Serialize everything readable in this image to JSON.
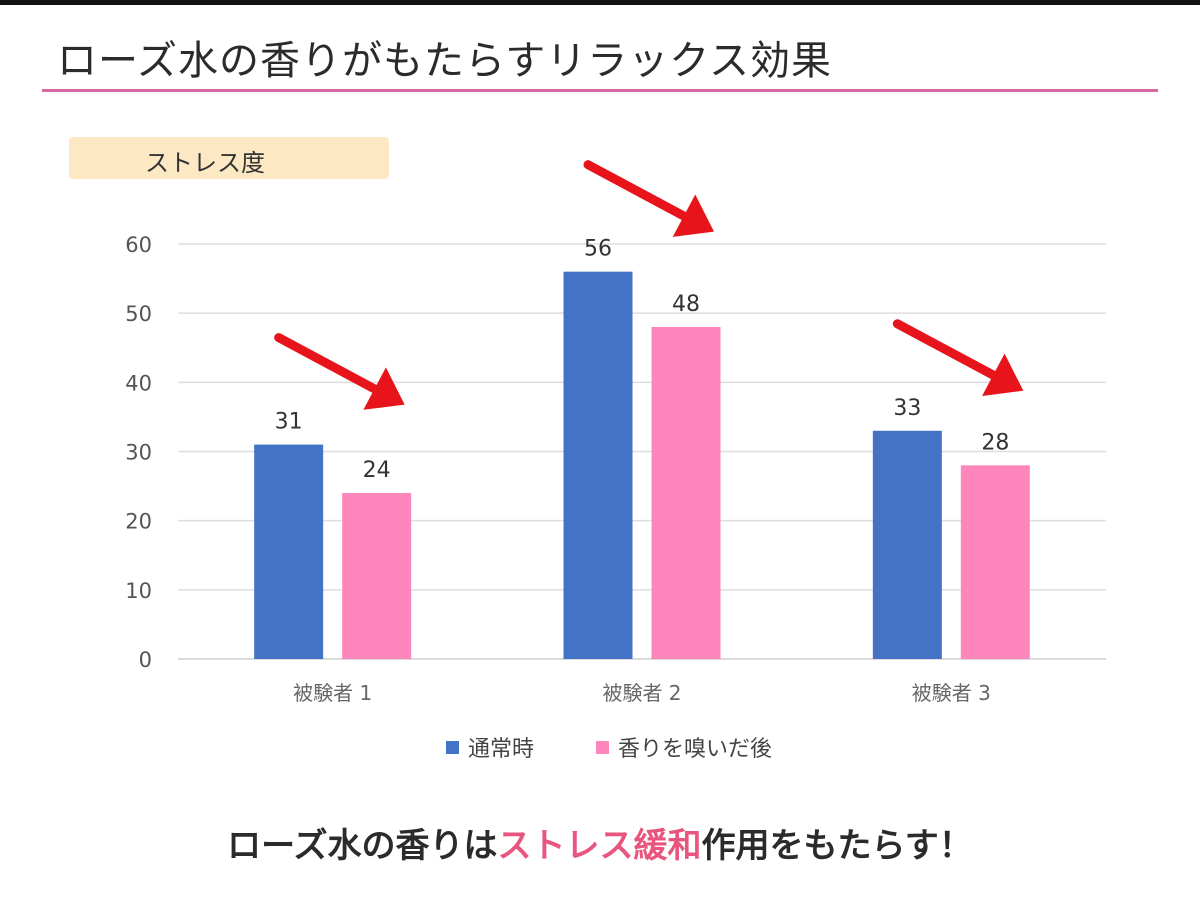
{
  "title": "ローズ水の香りがもたらすリラックス効果",
  "chart_data": {
    "type": "bar",
    "ylabel": "ストレス度",
    "xlabel": "",
    "categories": [
      "被験者 1",
      "被験者 2",
      "被験者 3"
    ],
    "series": [
      {
        "name": "通常時",
        "values": [
          31,
          56,
          33
        ],
        "color": "#4472c4"
      },
      {
        "name": "香りを嗅いだ後",
        "values": [
          24,
          48,
          28
        ],
        "color": "#ff85bd"
      }
    ],
    "ylim": [
      0,
      60
    ],
    "yticks": [
      0,
      10,
      20,
      30,
      40,
      50,
      60
    ],
    "grid": true,
    "legend": "bottom",
    "data_labels": true
  },
  "conclusion": {
    "before": "ローズ水の香りは",
    "highlight": "ストレス緩和",
    "after": "作用をもたらす！"
  },
  "colors": {
    "arrow": "#e8141b",
    "accent_rule": "#d46a9f",
    "highlight": "#e8557e"
  }
}
